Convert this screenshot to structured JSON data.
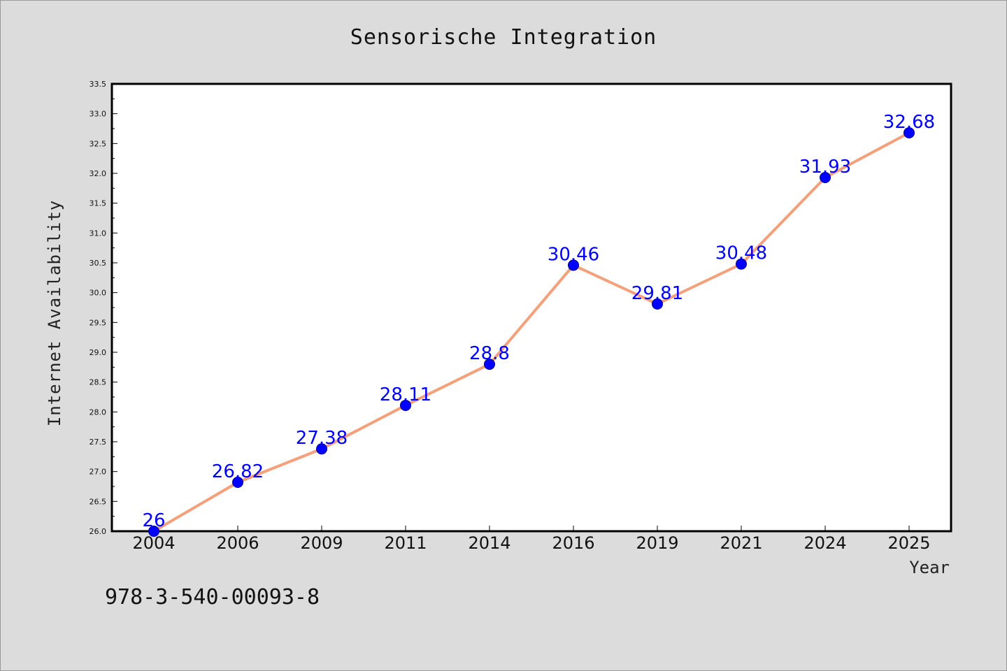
{
  "chart_data": {
    "type": "line",
    "title": "Sensorische Integration",
    "xlabel": "Year",
    "ylabel": "Internet Availability",
    "categories": [
      "2004",
      "2006",
      "2009",
      "2011",
      "2014",
      "2016",
      "2019",
      "2021",
      "2024",
      "2025"
    ],
    "series": [
      {
        "values": [
          26,
          26.82,
          27.38,
          28.11,
          28.8,
          30.46,
          29.81,
          30.48,
          31.93,
          32.68
        ],
        "labels": [
          "26",
          "26.82",
          "27.38",
          "28.11",
          "28.8",
          "30.46",
          "29.81",
          "30.48",
          "31.93",
          "32.68"
        ]
      }
    ],
    "ylim": [
      26.0,
      33.5
    ],
    "yticks": [
      "26.0",
      "26.5",
      "27.0",
      "27.5",
      "28.0",
      "28.5",
      "29.0",
      "29.5",
      "30.0",
      "30.5",
      "31.0",
      "31.5",
      "32.0",
      "32.5",
      "33.0",
      "33.5"
    ],
    "grid": false,
    "line_color": "#f4a07a",
    "marker_color": "#0000ff",
    "label_color": "#0000ff",
    "background_color": "#dcdcdc",
    "plot_background": "#ffffff"
  },
  "footer": {
    "isbn": "978-3-540-00093-8"
  }
}
